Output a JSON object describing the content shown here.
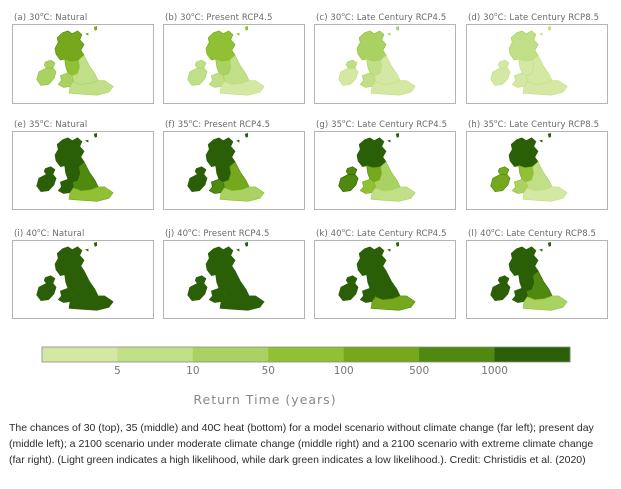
{
  "panels": [
    {
      "title": "(a) 30",
      "sup": "o",
      "suffix": "C: Natural",
      "levels": {
        "sc": 4,
        "nw": 3,
        "wa": 2,
        "mi": 1,
        "se": 1,
        "ni": 2,
        "ie": 2
      }
    },
    {
      "title": "(b) 30",
      "sup": "o",
      "suffix": "C: Present RCP4.5",
      "levels": {
        "sc": 3,
        "nw": 2,
        "wa": 1,
        "mi": 1,
        "se": 0,
        "ni": 1,
        "ie": 1
      }
    },
    {
      "title": "(c) 30",
      "sup": "o",
      "suffix": "C: Late Century RCP4.5",
      "levels": {
        "sc": 2,
        "nw": 1,
        "wa": 1,
        "mi": 0,
        "se": 0,
        "ni": 1,
        "ie": 0
      }
    },
    {
      "title": "(d) 30",
      "sup": "o",
      "suffix": "C: Late Century RCP8.5",
      "levels": {
        "sc": 1,
        "nw": 0,
        "wa": 0,
        "mi": 0,
        "se": 0,
        "ni": 0,
        "ie": 0
      }
    },
    {
      "title": "(e) 35",
      "sup": "o",
      "suffix": "C: Natural",
      "levels": {
        "sc": 6,
        "nw": 6,
        "wa": 6,
        "mi": 5,
        "se": 3,
        "ni": 6,
        "ie": 6
      }
    },
    {
      "title": "(f) 35",
      "sup": "o",
      "suffix": "C: Present RCP4.5",
      "levels": {
        "sc": 6,
        "nw": 6,
        "wa": 5,
        "mi": 4,
        "se": 2,
        "ni": 6,
        "ie": 6
      }
    },
    {
      "title": "(g) 35",
      "sup": "o",
      "suffix": "C: Late Century RCP4.5",
      "levels": {
        "sc": 6,
        "nw": 4,
        "wa": 3,
        "mi": 2,
        "se": 1,
        "ni": 5,
        "ie": 5
      }
    },
    {
      "title": "(h) 35",
      "sup": "o",
      "suffix": "C: Late Century RCP8.5",
      "levels": {
        "sc": 6,
        "nw": 3,
        "wa": 2,
        "mi": 1,
        "se": 0,
        "ni": 4,
        "ie": 4
      }
    },
    {
      "title": "(i) 40",
      "sup": "o",
      "suffix": "C: Natural",
      "levels": {
        "sc": 6,
        "nw": 6,
        "wa": 6,
        "mi": 6,
        "se": 6,
        "ni": 6,
        "ie": 6
      }
    },
    {
      "title": "(j) 40",
      "sup": "o",
      "suffix": "C: Present RCP4.5",
      "levels": {
        "sc": 6,
        "nw": 6,
        "wa": 6,
        "mi": 6,
        "se": 6,
        "ni": 6,
        "ie": 6
      }
    },
    {
      "title": "(k) 40",
      "sup": "o",
      "suffix": "C: Late Century RCP4.5",
      "levels": {
        "sc": 6,
        "nw": 6,
        "wa": 6,
        "mi": 6,
        "se": 4,
        "ni": 6,
        "ie": 6
      }
    },
    {
      "title": "(l) 40",
      "sup": "o",
      "suffix": "C: Late Century RCP8.5",
      "levels": {
        "sc": 6,
        "nw": 6,
        "wa": 6,
        "mi": 5,
        "se": 2,
        "ni": 6,
        "ie": 6
      }
    }
  ],
  "legend": {
    "colors": [
      "#d4e8a3",
      "#c1df86",
      "#a9d262",
      "#90c034",
      "#75a81d",
      "#4f8a0f",
      "#2a5f08"
    ],
    "ticks": [
      "5",
      "10",
      "50",
      "100",
      "500",
      "1000"
    ],
    "title": "Return Time (years)"
  },
  "caption": "The chances of 30 (top), 35 (middle) and 40C heat (bottom) for a model scenario without climate change (far left); present day (middle left); a 2100 scenario under moderate climate change (middle right) and a 2100 scenario with extreme climate change (far right). (Light green indicates a high likelihood, while dark green indicates a low likelihood.). Credit: Christidis et al. (2020)"
}
